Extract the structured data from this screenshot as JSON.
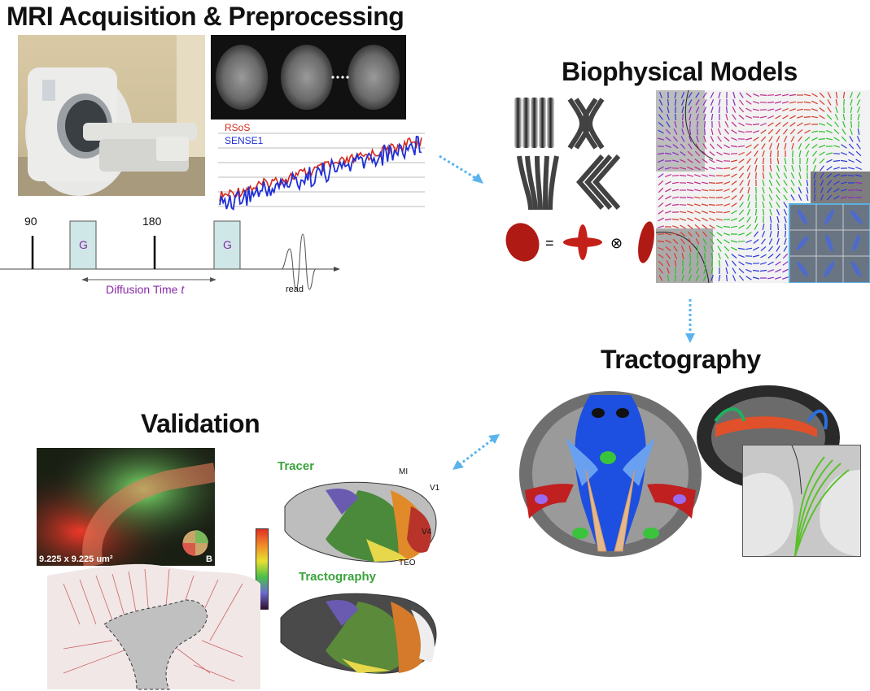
{
  "titles": {
    "acquisition": "MRI Acquisition & Preprocessing",
    "models": "Biophysical Models",
    "tractography": "Tractography",
    "validation": "Validation"
  },
  "pulse_sequence": {
    "pulse90": "90",
    "pulse180": "180",
    "gradient_label": "G",
    "diffusion_time": "Diffusion Time ",
    "diffusion_time_var": "t",
    "read": "read"
  },
  "snr_plot": {
    "legend": [
      {
        "name": "RSoS",
        "color": "#d42a1e"
      },
      {
        "name": "SENSE1",
        "color": "#1f2fd6"
      }
    ]
  },
  "validation": {
    "scale_label": "9.225 x 9.225 um²",
    "wheel_label": "B",
    "tracer_label": "Tracer",
    "tractography_label": "Tractography",
    "region_labels": [
      "MI",
      "V1",
      "V4",
      "TEO"
    ]
  },
  "colors": {
    "arrow": "#5ab4ec",
    "green_label": "#3aa33a",
    "diffusion_time": "#8a2aa8"
  }
}
